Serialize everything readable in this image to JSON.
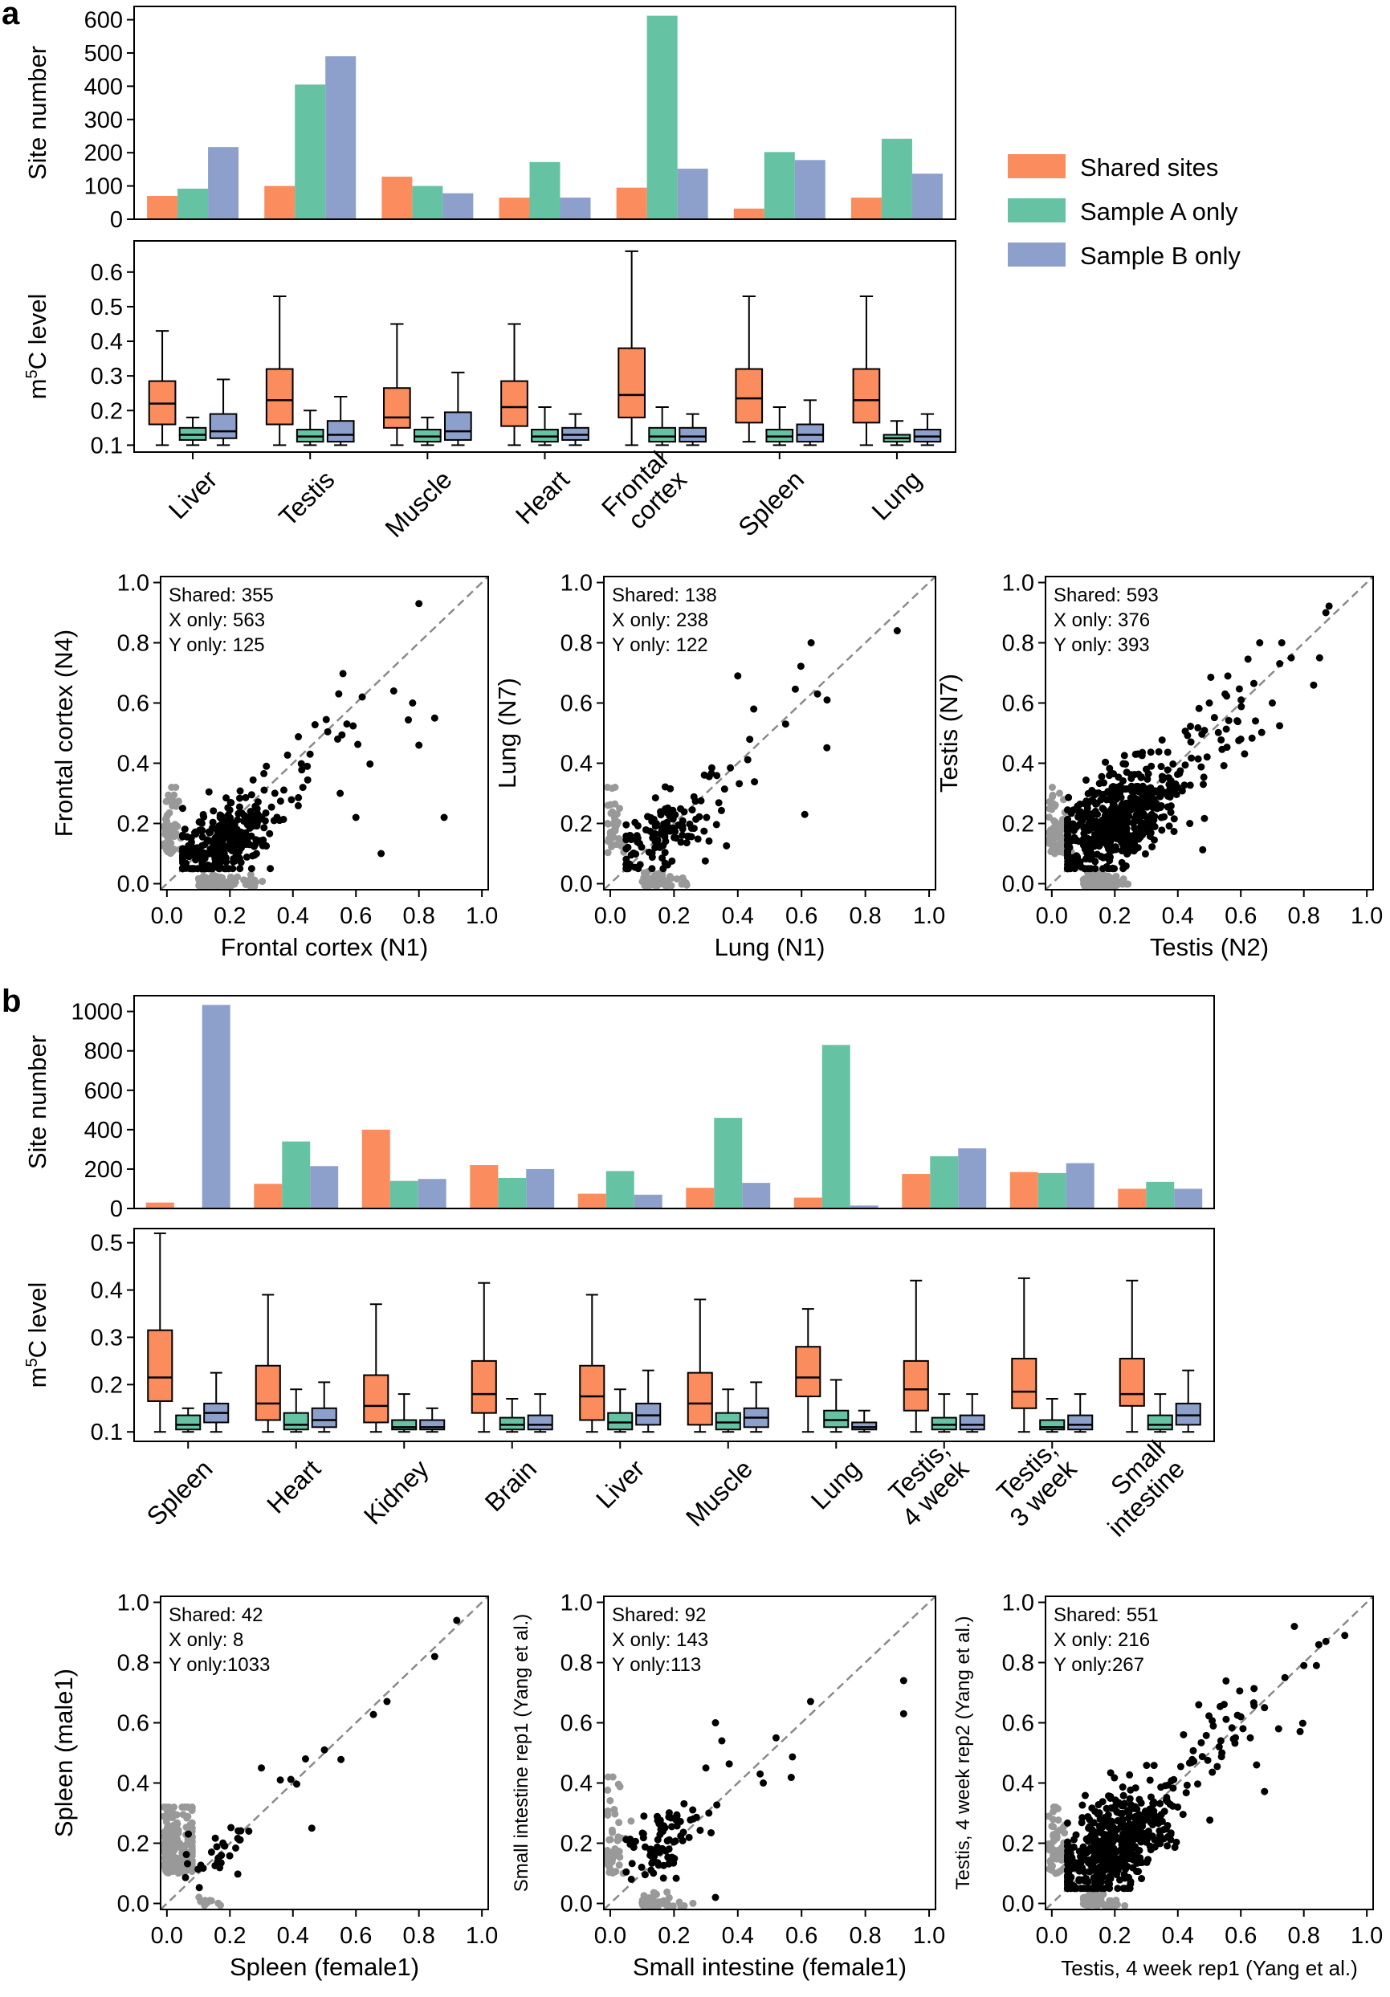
{
  "colors": {
    "shared": "#FA8C5E",
    "sample_a": "#65C2A3",
    "sample_b": "#8DA0CB",
    "black": "#000000",
    "gray": "#999999",
    "diag": "#8a8a8a"
  },
  "panel_a": {
    "label": "a",
    "legend": [
      "Shared sites",
      "Sample A only",
      "Sample B only"
    ]
  },
  "panel_b": {
    "label": "b"
  },
  "chart_data": [
    {
      "id": "a_bar",
      "type": "bar",
      "ylabel": "Site number",
      "ylim": [
        0,
        640
      ],
      "yticks": [
        0,
        100,
        200,
        300,
        400,
        500,
        600
      ],
      "categories": [
        "Liver",
        "Testis",
        "Muscle",
        "Heart",
        "Frontal\ncortex",
        "Spleen",
        "Lung"
      ],
      "series": [
        {
          "name": "Shared sites",
          "values": [
            70,
            100,
            128,
            65,
            95,
            32,
            65
          ]
        },
        {
          "name": "Sample A only",
          "values": [
            92,
            405,
            100,
            172,
            612,
            202,
            242
          ]
        },
        {
          "name": "Sample B only",
          "values": [
            217,
            490,
            78,
            65,
            152,
            178,
            137
          ]
        }
      ]
    },
    {
      "id": "a_box",
      "type": "box",
      "ylabel": "m5C level",
      "ylim": [
        0.08,
        0.69
      ],
      "yticks": [
        0.1,
        0.2,
        0.3,
        0.4,
        0.5,
        0.6
      ],
      "categories": [
        "Liver",
        "Testis",
        "Muscle",
        "Heart",
        "Frontal\ncortex",
        "Spleen",
        "Lung"
      ],
      "series": [
        {
          "name": "Shared sites",
          "stats": [
            [
              0.1,
              0.16,
              0.22,
              0.285,
              0.43
            ],
            [
              0.1,
              0.16,
              0.23,
              0.32,
              0.53
            ],
            [
              0.1,
              0.15,
              0.18,
              0.265,
              0.45
            ],
            [
              0.1,
              0.155,
              0.21,
              0.285,
              0.45
            ],
            [
              0.1,
              0.18,
              0.245,
              0.38,
              0.66
            ],
            [
              0.11,
              0.165,
              0.235,
              0.32,
              0.53
            ],
            [
              0.1,
              0.165,
              0.23,
              0.32,
              0.53
            ]
          ]
        },
        {
          "name": "Sample A only",
          "stats": [
            [
              0.1,
              0.115,
              0.13,
              0.15,
              0.18
            ],
            [
              0.1,
              0.11,
              0.125,
              0.145,
              0.2
            ],
            [
              0.1,
              0.11,
              0.125,
              0.145,
              0.18
            ],
            [
              0.1,
              0.11,
              0.125,
              0.145,
              0.21
            ],
            [
              0.1,
              0.11,
              0.125,
              0.15,
              0.21
            ],
            [
              0.1,
              0.11,
              0.125,
              0.145,
              0.21
            ],
            [
              0.1,
              0.11,
              0.12,
              0.13,
              0.17
            ]
          ]
        },
        {
          "name": "Sample B only",
          "stats": [
            [
              0.1,
              0.12,
              0.14,
              0.19,
              0.29
            ],
            [
              0.1,
              0.11,
              0.13,
              0.17,
              0.24
            ],
            [
              0.1,
              0.115,
              0.14,
              0.195,
              0.31
            ],
            [
              0.1,
              0.115,
              0.13,
              0.15,
              0.19
            ],
            [
              0.1,
              0.11,
              0.125,
              0.15,
              0.19
            ],
            [
              0.1,
              0.11,
              0.13,
              0.16,
              0.23
            ],
            [
              0.1,
              0.11,
              0.125,
              0.145,
              0.19
            ]
          ]
        }
      ]
    },
    {
      "id": "a_sc1",
      "type": "scatter",
      "xlabel": "Frontal cortex (N1)",
      "ylabel": "Frontal cortex (N4)",
      "xlim": [
        -0.02,
        1.02
      ],
      "ylim": [
        -0.02,
        1.02
      ],
      "ticks": [
        0.0,
        0.2,
        0.4,
        0.6,
        0.8,
        1.0
      ],
      "annotation": [
        "Shared: 355",
        "X only: 563",
        "Y only: 125"
      ],
      "seed": 11,
      "shared": {
        "n": 355,
        "core": [
          0.17,
          0.14,
          0.08,
          0.06
        ],
        "tail": [
          [
            0.8,
            0.93
          ],
          [
            0.88,
            0.22
          ],
          [
            0.68,
            0.1
          ],
          [
            0.62,
            0.62
          ],
          [
            0.8,
            0.46
          ],
          [
            0.85,
            0.55
          ],
          [
            0.72,
            0.64
          ],
          [
            0.78,
            0.6
          ],
          [
            0.55,
            0.3
          ],
          [
            0.6,
            0.22
          ]
        ]
      },
      "gray_x": {
        "n": 140,
        "spread": [
          0.06,
          0.38
        ]
      },
      "gray_y": {
        "n": 60,
        "spread": [
          0.3,
          0.03
        ]
      }
    },
    {
      "id": "a_sc2",
      "type": "scatter",
      "xlabel": "Lung (N1)",
      "ylabel": "Lung (N7)",
      "xlim": [
        -0.02,
        1.02
      ],
      "ylim": [
        -0.02,
        1.02
      ],
      "ticks": [
        0.0,
        0.2,
        0.4,
        0.6,
        0.8,
        1.0
      ],
      "annotation": [
        "Shared: 138",
        "X only: 238",
        "Y only: 122"
      ],
      "seed": 23,
      "shared": {
        "n": 138,
        "core": [
          0.16,
          0.16,
          0.08,
          0.06
        ],
        "tail": [
          [
            0.9,
            0.84
          ],
          [
            0.63,
            0.8
          ],
          [
            0.65,
            0.63
          ],
          [
            0.61,
            0.23
          ],
          [
            0.4,
            0.69
          ],
          [
            0.45,
            0.58
          ],
          [
            0.68,
            0.61
          ],
          [
            0.55,
            0.53
          ]
        ]
      },
      "gray_x": {
        "n": 60,
        "spread": [
          0.05,
          0.22
        ]
      },
      "gray_y": {
        "n": 40,
        "spread": [
          0.3,
          0.03
        ]
      }
    },
    {
      "id": "a_sc3",
      "type": "scatter",
      "xlabel": "Testis (N2)",
      "ylabel": "Testis (N7)",
      "xlim": [
        -0.02,
        1.02
      ],
      "ylim": [
        -0.02,
        1.02
      ],
      "ticks": [
        0.0,
        0.2,
        0.4,
        0.6,
        0.8,
        1.0
      ],
      "annotation": [
        "Shared: 593",
        "X only: 376",
        "Y only: 393"
      ],
      "seed": 37,
      "shared": {
        "n": 593,
        "core": [
          0.2,
          0.2,
          0.1,
          0.08
        ],
        "tail": [
          [
            0.87,
            0.9
          ],
          [
            0.85,
            0.75
          ],
          [
            0.76,
            0.75
          ],
          [
            0.73,
            0.8
          ],
          [
            0.66,
            0.8
          ],
          [
            0.7,
            0.6
          ],
          [
            0.55,
            0.63
          ],
          [
            0.6,
            0.48
          ],
          [
            0.5,
            0.6
          ]
        ]
      },
      "gray_x": {
        "n": 100,
        "spread": [
          0.05,
          0.4
        ]
      },
      "gray_y": {
        "n": 80,
        "spread": [
          0.3,
          0.03
        ]
      }
    },
    {
      "id": "b_bar",
      "type": "bar",
      "ylabel": "Site number",
      "ylim": [
        0,
        1080
      ],
      "yticks": [
        0,
        200,
        400,
        600,
        800,
        1000
      ],
      "categories": [
        "Spleen",
        "Heart",
        "Kidney",
        "Brain",
        "Liver",
        "Muscle",
        "Lung",
        "Testis,\n4 week",
        "Testis,\n3 week",
        "Small\nintestine"
      ],
      "series": [
        {
          "name": "Shared sites",
          "values": [
            30,
            125,
            400,
            220,
            75,
            105,
            55,
            175,
            185,
            100
          ]
        },
        {
          "name": "Sample A only",
          "values": [
            5,
            340,
            140,
            155,
            190,
            460,
            830,
            265,
            180,
            135
          ]
        },
        {
          "name": "Sample B only",
          "values": [
            1033,
            215,
            150,
            200,
            70,
            130,
            15,
            305,
            230,
            100
          ]
        }
      ]
    },
    {
      "id": "b_box",
      "type": "box",
      "ylabel": "m5C level",
      "ylim": [
        0.08,
        0.53
      ],
      "yticks": [
        0.1,
        0.2,
        0.3,
        0.4,
        0.5
      ],
      "categories": [
        "Spleen",
        "Heart",
        "Kidney",
        "Brain",
        "Liver",
        "Muscle",
        "Lung",
        "Testis,\n4 week",
        "Testis,\n3 week",
        "Small\nintestine"
      ],
      "series": [
        {
          "name": "Shared sites",
          "stats": [
            [
              0.1,
              0.165,
              0.215,
              0.315,
              0.52
            ],
            [
              0.1,
              0.125,
              0.16,
              0.24,
              0.39
            ],
            [
              0.1,
              0.12,
              0.155,
              0.22,
              0.37
            ],
            [
              0.1,
              0.14,
              0.18,
              0.25,
              0.415
            ],
            [
              0.1,
              0.125,
              0.175,
              0.24,
              0.39
            ],
            [
              0.1,
              0.115,
              0.16,
              0.225,
              0.38
            ],
            [
              0.1,
              0.175,
              0.215,
              0.28,
              0.36
            ],
            [
              0.1,
              0.145,
              0.19,
              0.25,
              0.42
            ],
            [
              0.1,
              0.15,
              0.185,
              0.255,
              0.425
            ],
            [
              0.1,
              0.155,
              0.18,
              0.255,
              0.42
            ]
          ]
        },
        {
          "name": "Sample A only",
          "stats": [
            [
              0.1,
              0.105,
              0.115,
              0.135,
              0.15
            ],
            [
              0.1,
              0.105,
              0.115,
              0.14,
              0.19
            ],
            [
              0.1,
              0.105,
              0.11,
              0.125,
              0.18
            ],
            [
              0.1,
              0.105,
              0.115,
              0.13,
              0.17
            ],
            [
              0.1,
              0.105,
              0.12,
              0.14,
              0.19
            ],
            [
              0.1,
              0.105,
              0.12,
              0.14,
              0.19
            ],
            [
              0.1,
              0.11,
              0.125,
              0.145,
              0.21
            ],
            [
              0.1,
              0.105,
              0.115,
              0.13,
              0.18
            ],
            [
              0.1,
              0.105,
              0.11,
              0.125,
              0.17
            ],
            [
              0.1,
              0.105,
              0.115,
              0.135,
              0.18
            ]
          ]
        },
        {
          "name": "Sample B only",
          "stats": [
            [
              0.1,
              0.12,
              0.14,
              0.16,
              0.225
            ],
            [
              0.1,
              0.11,
              0.125,
              0.15,
              0.205
            ],
            [
              0.1,
              0.105,
              0.11,
              0.125,
              0.15
            ],
            [
              0.1,
              0.105,
              0.115,
              0.135,
              0.18
            ],
            [
              0.1,
              0.115,
              0.135,
              0.16,
              0.23
            ],
            [
              0.1,
              0.11,
              0.13,
              0.15,
              0.205
            ],
            [
              0.1,
              0.105,
              0.11,
              0.12,
              0.145
            ],
            [
              0.1,
              0.105,
              0.115,
              0.135,
              0.18
            ],
            [
              0.1,
              0.105,
              0.115,
              0.135,
              0.18
            ],
            [
              0.1,
              0.115,
              0.135,
              0.16,
              0.23
            ]
          ]
        }
      ]
    },
    {
      "id": "b_sc1",
      "type": "scatter",
      "xlabel": "Spleen (female1)",
      "ylabel": "Spleen (male1)",
      "xlim": [
        -0.02,
        1.02
      ],
      "ylim": [
        -0.02,
        1.02
      ],
      "ticks": [
        0.0,
        0.2,
        0.4,
        0.6,
        0.8,
        1.0
      ],
      "annotation": [
        "Shared: 42",
        "X only: 8",
        "Y only:1033"
      ],
      "seed": 41,
      "shared": {
        "n": 42,
        "core": [
          0.15,
          0.16,
          0.05,
          0.05
        ],
        "tail": [
          [
            0.92,
            0.94
          ],
          [
            0.85,
            0.82
          ],
          [
            0.5,
            0.51
          ],
          [
            0.44,
            0.48
          ],
          [
            0.46,
            0.25
          ],
          [
            0.3,
            0.45
          ],
          [
            0.36,
            0.41
          ],
          [
            0.26,
            0.24
          ]
        ]
      },
      "gray_x": {
        "n": 10,
        "spread": [
          0.04,
          0.15
        ]
      },
      "gray_y": {
        "n": 200,
        "spread": [
          0.3,
          0.06
        ]
      }
    },
    {
      "id": "b_sc2",
      "type": "scatter",
      "xlabel": "Small intestine (female1)",
      "ylabel": "Small intestine rep1 (Yang et al.)",
      "xlim": [
        -0.02,
        1.02
      ],
      "ylim": [
        -0.02,
        1.02
      ],
      "ticks": [
        0.0,
        0.2,
        0.4,
        0.6,
        0.8,
        1.0
      ],
      "annotation": [
        "Shared: 92",
        "X only: 143",
        "Y only:113"
      ],
      "seed": 53,
      "shared": {
        "n": 92,
        "core": [
          0.17,
          0.2,
          0.06,
          0.06
        ],
        "tail": [
          [
            0.92,
            0.74
          ],
          [
            0.92,
            0.63
          ],
          [
            0.52,
            0.55
          ],
          [
            0.47,
            0.43
          ],
          [
            0.48,
            0.4
          ],
          [
            0.33,
            0.6
          ],
          [
            0.35,
            0.54
          ],
          [
            0.33,
            0.02
          ],
          [
            0.3,
            0.45
          ]
        ]
      },
      "gray_x": {
        "n": 60,
        "spread": [
          0.05,
          0.25
        ]
      },
      "gray_y": {
        "n": 50,
        "spread": [
          0.4,
          0.03
        ]
      }
    },
    {
      "id": "b_sc3",
      "type": "scatter",
      "xlabel": "Testis, 4 week rep1 (Yang et al.)",
      "ylabel": "Testis, 4 week rep2 (Yang et al.)",
      "xlim": [
        -0.02,
        1.02
      ],
      "ylim": [
        -0.02,
        1.02
      ],
      "ticks": [
        0.0,
        0.2,
        0.4,
        0.6,
        0.8,
        1.0
      ],
      "annotation": [
        "Shared: 551",
        "X only: 216",
        "Y only:267"
      ],
      "seed": 67,
      "shared": {
        "n": 551,
        "core": [
          0.18,
          0.18,
          0.09,
          0.08
        ],
        "tail": [
          [
            0.93,
            0.89
          ],
          [
            0.87,
            0.87
          ],
          [
            0.77,
            0.92
          ],
          [
            0.8,
            0.79
          ],
          [
            0.84,
            0.79
          ],
          [
            0.74,
            0.75
          ],
          [
            0.72,
            0.58
          ],
          [
            0.65,
            0.46
          ],
          [
            0.6,
            0.62
          ],
          [
            0.63,
            0.55
          ],
          [
            0.54,
            0.5
          ]
        ]
      },
      "gray_x": {
        "n": 60,
        "spread": [
          0.05,
          0.3
        ]
      },
      "gray_y": {
        "n": 60,
        "spread": [
          0.3,
          0.03
        ]
      }
    }
  ]
}
